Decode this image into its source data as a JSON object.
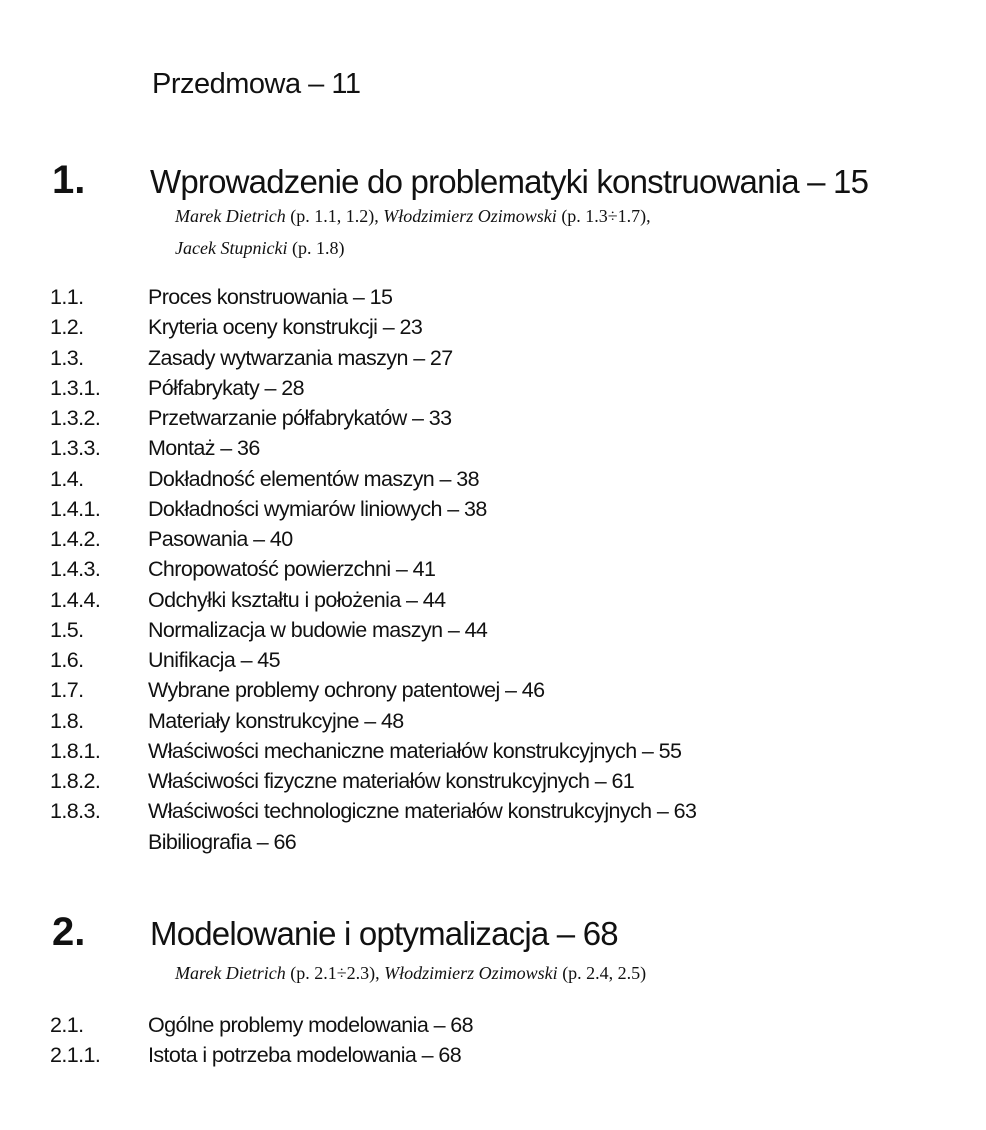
{
  "preface": "Przedmowa – 11",
  "chapters": [
    {
      "number": "1.",
      "title": "Wprowadzenie do problematyki konstruowania – 15",
      "authors_line1": [
        {
          "name": "Marek Dietrich",
          "scope": " (p. 1.1, 1.2), "
        },
        {
          "name": "Włodzimierz Ozimowski",
          "scope": " (p. 1.3÷1.7),"
        }
      ],
      "authors_line2": [
        {
          "name": "Jacek Stupnicki",
          "scope": " (p. 1.8)"
        }
      ],
      "entries": [
        {
          "num": "1.1.",
          "title": "Proces konstruowania – 15"
        },
        {
          "num": "1.2.",
          "title": "Kryteria oceny konstrukcji – 23"
        },
        {
          "num": "1.3.",
          "title": "Zasady wytwarzania maszyn – 27"
        },
        {
          "num": "1.3.1.",
          "title": "Półfabrykaty – 28"
        },
        {
          "num": "1.3.2.",
          "title": "Przetwarzanie półfabrykatów – 33"
        },
        {
          "num": "1.3.3.",
          "title": "Montaż – 36"
        },
        {
          "num": "1.4.",
          "title": "Dokładność elementów maszyn – 38"
        },
        {
          "num": "1.4.1.",
          "title": "Dokładności wymiarów liniowych – 38"
        },
        {
          "num": "1.4.2.",
          "title": "Pasowania – 40"
        },
        {
          "num": "1.4.3.",
          "title": "Chropowatość powierzchni – 41"
        },
        {
          "num": "1.4.4.",
          "title": "Odchyłki kształtu i położenia – 44"
        },
        {
          "num": "1.5.",
          "title": "Normalizacja w budowie maszyn – 44"
        },
        {
          "num": "1.6.",
          "title": "Unifikacja – 45"
        },
        {
          "num": "1.7.",
          "title": "Wybrane problemy ochrony patentowej – 46"
        },
        {
          "num": "1.8.",
          "title": "Materiały konstrukcyjne – 48"
        },
        {
          "num": "1.8.1.",
          "title": "Właściwości mechaniczne materiałów konstrukcyjnych – 55"
        },
        {
          "num": "1.8.2.",
          "title": "Właściwości fizyczne materiałów konstrukcyjnych – 61"
        },
        {
          "num": "1.8.3.",
          "title": "Właściwości technologiczne materiałów konstrukcyjnych – 63"
        },
        {
          "num": "",
          "title": "Bibiliografia – 66"
        }
      ]
    },
    {
      "number": "2.",
      "title": "Modelowanie i optymalizacja – 68",
      "authors_line1": [
        {
          "name": "Marek Dietrich",
          "scope": " (p. 2.1÷2.3), "
        },
        {
          "name": "Włodzimierz Ozimowski",
          "scope": " (p. 2.4, 2.5)"
        }
      ],
      "entries": [
        {
          "num": "2.1.",
          "title": "Ogólne problemy modelowania – 68"
        },
        {
          "num": "2.1.1.",
          "title": "Istota i potrzeba modelowania – 68"
        }
      ]
    }
  ]
}
